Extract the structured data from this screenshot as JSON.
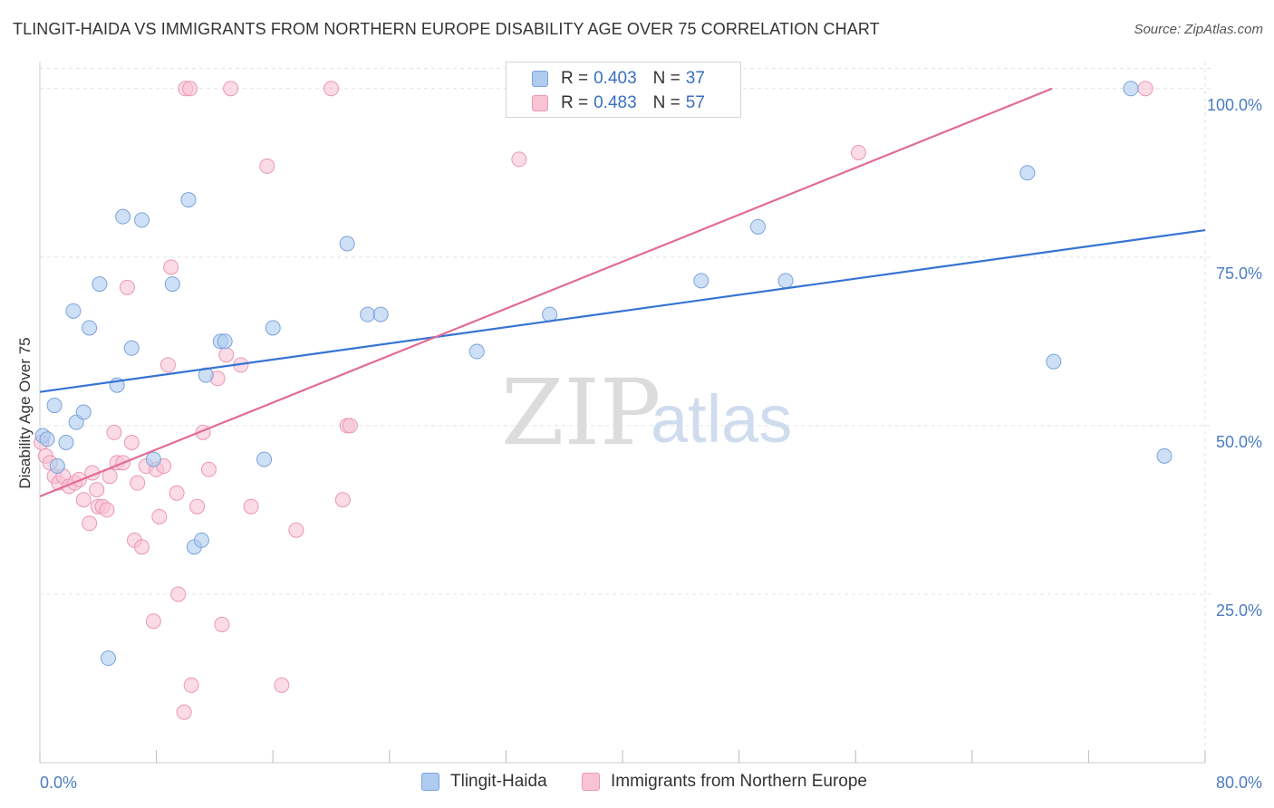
{
  "header": {
    "title": "TLINGIT-HAIDA VS IMMIGRANTS FROM NORTHERN EUROPE DISABILITY AGE OVER 75 CORRELATION CHART",
    "source": "Source: ZipAtlas.com"
  },
  "watermark": {
    "zip": "ZIP",
    "atlas": "atlas"
  },
  "legend": {
    "rows": [
      {
        "r_label": "R =",
        "r_value": "0.403",
        "n_label": "N =",
        "n_value": "37"
      },
      {
        "r_label": "R =",
        "r_value": "0.483",
        "n_label": "N =",
        "n_value": "57"
      }
    ]
  },
  "colors": {
    "blue_fill": "#aecbf0",
    "blue_stroke": "#7aa3dc",
    "blue_line": "#3673d4",
    "pink_fill": "#f8c3d3",
    "pink_stroke": "#ea98b3",
    "pink_line": "#e26b96",
    "grid": "#e3e3e3",
    "tick_text": "#4a7cc4"
  },
  "chart_data": {
    "type": "scatter",
    "title": "TLINGIT-HAIDA VS IMMIGRANTS FROM NORTHERN EUROPE DISABILITY AGE OVER 75 CORRELATION CHART",
    "xlabel": "",
    "ylabel": "Disability Age Over 75",
    "xlim": [
      0,
      80
    ],
    "ylim": [
      0,
      104
    ],
    "x_tick_labels": {
      "min": "0.0%",
      "max": "80.0%"
    },
    "y_ticks": [
      {
        "value": 25,
        "label": "25.0%"
      },
      {
        "value": 50,
        "label": "50.0%"
      },
      {
        "value": 75,
        "label": "75.0%"
      },
      {
        "value": 100,
        "label": "100.0%"
      }
    ],
    "grid": true,
    "series": [
      {
        "name": "Tlingit-Haida",
        "color": "blue",
        "trend": {
          "x": [
            0,
            80
          ],
          "y": [
            55.0,
            79.0
          ]
        },
        "points": [
          [
            0.2,
            48.5
          ],
          [
            0.5,
            48.0
          ],
          [
            1.0,
            53.0
          ],
          [
            1.2,
            44.0
          ],
          [
            1.8,
            47.5
          ],
          [
            2.3,
            67.0
          ],
          [
            2.5,
            50.5
          ],
          [
            3.0,
            52.0
          ],
          [
            3.4,
            64.5
          ],
          [
            4.1,
            71.0
          ],
          [
            4.7,
            15.5
          ],
          [
            5.3,
            56.0
          ],
          [
            5.7,
            81.0
          ],
          [
            6.3,
            61.5
          ],
          [
            7.0,
            80.5
          ],
          [
            7.8,
            45.0
          ],
          [
            9.1,
            71.0
          ],
          [
            10.2,
            83.5
          ],
          [
            10.6,
            32.0
          ],
          [
            11.1,
            33.0
          ],
          [
            11.4,
            57.5
          ],
          [
            12.4,
            62.5
          ],
          [
            12.7,
            62.5
          ],
          [
            15.4,
            45.0
          ],
          [
            16.0,
            64.5
          ],
          [
            21.1,
            77.0
          ],
          [
            22.5,
            66.5
          ],
          [
            23.4,
            66.5
          ],
          [
            30.0,
            61.0
          ],
          [
            35.0,
            66.5
          ],
          [
            45.4,
            71.5
          ],
          [
            49.3,
            79.5
          ],
          [
            51.2,
            71.5
          ],
          [
            67.8,
            87.5
          ],
          [
            69.6,
            59.5
          ],
          [
            74.9,
            100.0
          ],
          [
            77.2,
            45.5
          ]
        ]
      },
      {
        "name": "Immigrants from Northern Europe",
        "color": "pink",
        "trend": {
          "x": [
            0,
            69.5
          ],
          "y": [
            39.5,
            100.0
          ]
        },
        "points": [
          [
            0.1,
            47.5
          ],
          [
            0.4,
            45.5
          ],
          [
            0.7,
            44.5
          ],
          [
            1.0,
            42.5
          ],
          [
            1.3,
            41.5
          ],
          [
            1.6,
            42.5
          ],
          [
            2.0,
            41.0
          ],
          [
            2.4,
            41.5
          ],
          [
            2.7,
            42.0
          ],
          [
            3.0,
            39.0
          ],
          [
            3.4,
            35.5
          ],
          [
            3.6,
            43.0
          ],
          [
            3.9,
            40.5
          ],
          [
            4.0,
            38.0
          ],
          [
            4.3,
            38.0
          ],
          [
            4.6,
            37.5
          ],
          [
            4.8,
            42.5
          ],
          [
            5.1,
            49.0
          ],
          [
            5.3,
            44.5
          ],
          [
            5.7,
            44.5
          ],
          [
            6.0,
            70.5
          ],
          [
            6.3,
            47.5
          ],
          [
            6.5,
            33.0
          ],
          [
            6.7,
            41.5
          ],
          [
            7.0,
            32.0
          ],
          [
            7.3,
            44.0
          ],
          [
            7.8,
            21.0
          ],
          [
            8.0,
            43.5
          ],
          [
            8.2,
            36.5
          ],
          [
            8.5,
            44.0
          ],
          [
            8.8,
            59.0
          ],
          [
            9.0,
            73.5
          ],
          [
            9.4,
            40.0
          ],
          [
            9.5,
            25.0
          ],
          [
            9.9,
            7.5
          ],
          [
            10.0,
            100.0
          ],
          [
            10.3,
            100.0
          ],
          [
            10.4,
            11.5
          ],
          [
            10.8,
            38.0
          ],
          [
            11.2,
            49.0
          ],
          [
            11.6,
            43.5
          ],
          [
            12.2,
            57.0
          ],
          [
            12.5,
            20.5
          ],
          [
            12.8,
            60.5
          ],
          [
            13.1,
            100.0
          ],
          [
            13.8,
            59.0
          ],
          [
            14.5,
            38.0
          ],
          [
            15.6,
            88.5
          ],
          [
            16.6,
            11.5
          ],
          [
            17.6,
            34.5
          ],
          [
            20.0,
            100.0
          ],
          [
            20.8,
            39.0
          ],
          [
            21.1,
            50.0
          ],
          [
            21.3,
            50.0
          ],
          [
            32.9,
            89.5
          ],
          [
            56.2,
            90.5
          ],
          [
            75.9,
            100.0
          ]
        ]
      }
    ]
  },
  "bottom_legend": {
    "items": [
      {
        "label": "Tlingit-Haida"
      },
      {
        "label": "Immigrants from Northern Europe"
      }
    ]
  }
}
